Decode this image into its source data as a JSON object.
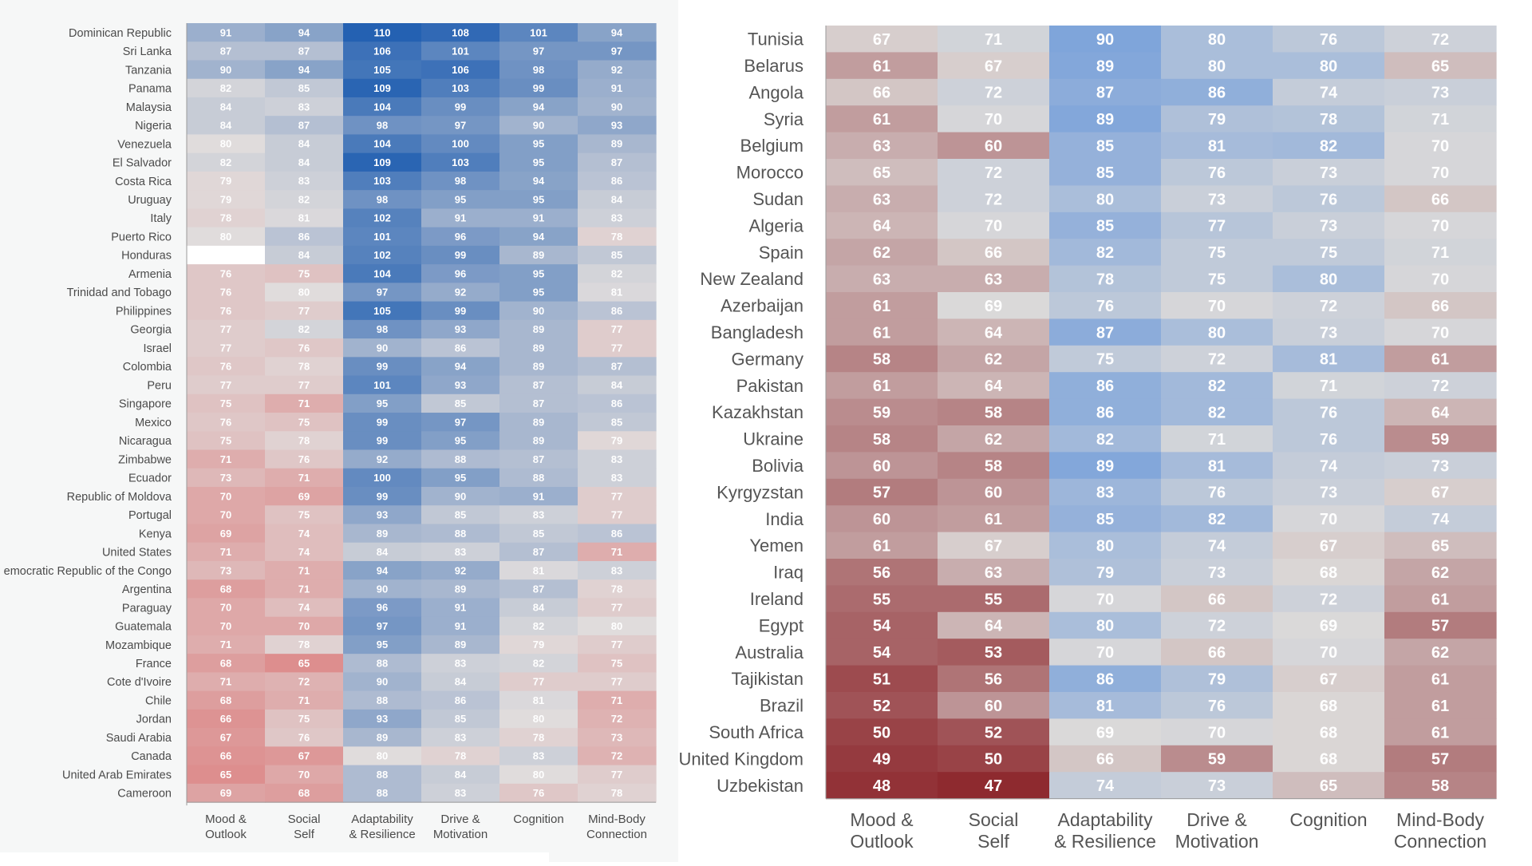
{
  "chart_data": [
    {
      "type": "heatmap",
      "columns": [
        "Mood & Outlook",
        "Social Self",
        "Adaptability & Resilience",
        "Drive & Motivation",
        "Cognition",
        "Mind-Body Connection"
      ],
      "column_labels": [
        [
          "Mood &",
          "Outlook"
        ],
        [
          "Social",
          "Self"
        ],
        [
          "Adaptability",
          "& Resilience"
        ],
        [
          "Drive &",
          "Motivation"
        ],
        [
          "Cognition"
        ],
        [
          "Mind-Body",
          "Connection"
        ]
      ],
      "color_scale": {
        "low": "#d94040",
        "mid": "#e0dcdc",
        "high": "#2461b2",
        "range": [
          50,
          110
        ]
      },
      "rows": [
        {
          "country": "Dominican Republic",
          "values": [
            91,
            94,
            110,
            108,
            101,
            94
          ]
        },
        {
          "country": "Sri Lanka",
          "values": [
            87,
            87,
            106,
            101,
            97,
            97
          ]
        },
        {
          "country": "Tanzania",
          "values": [
            90,
            94,
            105,
            106,
            98,
            92
          ]
        },
        {
          "country": "Panama",
          "values": [
            82,
            85,
            109,
            103,
            99,
            91
          ]
        },
        {
          "country": "Malaysia",
          "values": [
            84,
            83,
            104,
            99,
            94,
            90
          ]
        },
        {
          "country": "Nigeria",
          "values": [
            84,
            87,
            98,
            97,
            90,
            93
          ]
        },
        {
          "country": "Venezuela",
          "values": [
            80,
            84,
            104,
            100,
            95,
            89
          ]
        },
        {
          "country": "El Salvador",
          "values": [
            82,
            84,
            109,
            103,
            95,
            87
          ]
        },
        {
          "country": "Costa Rica",
          "values": [
            79,
            83,
            103,
            98,
            94,
            86
          ]
        },
        {
          "country": "Uruguay",
          "values": [
            79,
            82,
            98,
            95,
            95,
            84
          ]
        },
        {
          "country": "Italy",
          "values": [
            78,
            81,
            102,
            91,
            91,
            83
          ]
        },
        {
          "country": "Puerto Rico",
          "values": [
            80,
            86,
            101,
            96,
            94,
            78
          ]
        },
        {
          "country": "Honduras",
          "values": [
            null,
            84,
            102,
            99,
            89,
            85
          ]
        },
        {
          "country": "Armenia",
          "values": [
            76,
            75,
            104,
            96,
            95,
            82
          ]
        },
        {
          "country": "Trinidad and Tobago",
          "values": [
            76,
            80,
            97,
            92,
            95,
            81
          ]
        },
        {
          "country": "Philippines",
          "values": [
            76,
            77,
            105,
            99,
            90,
            86
          ]
        },
        {
          "country": "Georgia",
          "values": [
            77,
            82,
            98,
            93,
            89,
            77
          ]
        },
        {
          "country": "Israel",
          "values": [
            77,
            76,
            90,
            86,
            89,
            77
          ]
        },
        {
          "country": "Colombia",
          "values": [
            76,
            78,
            99,
            94,
            89,
            87
          ]
        },
        {
          "country": "Peru",
          "values": [
            77,
            77,
            101,
            93,
            87,
            84
          ]
        },
        {
          "country": "Singapore",
          "values": [
            75,
            71,
            95,
            85,
            87,
            86
          ]
        },
        {
          "country": "Mexico",
          "values": [
            76,
            75,
            99,
            97,
            89,
            85
          ]
        },
        {
          "country": "Nicaragua",
          "values": [
            75,
            78,
            99,
            95,
            89,
            79
          ]
        },
        {
          "country": "Zimbabwe",
          "values": [
            71,
            76,
            92,
            88,
            87,
            83
          ]
        },
        {
          "country": "Ecuador",
          "values": [
            73,
            71,
            100,
            95,
            88,
            83
          ]
        },
        {
          "country": "Republic of Moldova",
          "values": [
            70,
            69,
            99,
            90,
            91,
            77
          ]
        },
        {
          "country": "Portugal",
          "values": [
            70,
            75,
            93,
            85,
            83,
            77
          ]
        },
        {
          "country": "Kenya",
          "values": [
            69,
            74,
            89,
            88,
            85,
            86
          ]
        },
        {
          "country": "United States",
          "values": [
            71,
            74,
            84,
            83,
            87,
            71
          ]
        },
        {
          "country": "emocratic Republic of the Congo",
          "values": [
            73,
            71,
            94,
            92,
            81,
            83
          ]
        },
        {
          "country": "Argentina",
          "values": [
            68,
            71,
            90,
            89,
            87,
            78
          ]
        },
        {
          "country": "Paraguay",
          "values": [
            70,
            74,
            96,
            91,
            84,
            77
          ]
        },
        {
          "country": "Guatemala",
          "values": [
            70,
            70,
            97,
            91,
            82,
            80
          ]
        },
        {
          "country": "Mozambique",
          "values": [
            71,
            78,
            95,
            89,
            79,
            77
          ]
        },
        {
          "country": "France",
          "values": [
            68,
            65,
            88,
            83,
            82,
            75
          ]
        },
        {
          "country": "Cote d'Ivoire",
          "values": [
            71,
            72,
            90,
            84,
            77,
            77
          ]
        },
        {
          "country": "Chile",
          "values": [
            68,
            71,
            88,
            86,
            81,
            71
          ]
        },
        {
          "country": "Jordan",
          "values": [
            66,
            75,
            93,
            85,
            80,
            72
          ]
        },
        {
          "country": "Saudi Arabia",
          "values": [
            67,
            76,
            89,
            83,
            78,
            73
          ]
        },
        {
          "country": "Canada",
          "values": [
            66,
            67,
            80,
            78,
            83,
            72
          ]
        },
        {
          "country": "United Arab Emirates",
          "values": [
            65,
            70,
            88,
            84,
            80,
            77
          ]
        },
        {
          "country": "Cameroon",
          "values": [
            69,
            68,
            88,
            83,
            76,
            78
          ]
        }
      ]
    },
    {
      "type": "heatmap",
      "columns": [
        "Mood & Outlook",
        "Social Self",
        "Adaptability & Resilience",
        "Drive & Motivation",
        "Cognition",
        "Mind-Body Connection"
      ],
      "column_labels": [
        [
          "Mood &",
          "Outlook"
        ],
        [
          "Social",
          "Self"
        ],
        [
          "Adaptability",
          "& Resilience"
        ],
        [
          "Drive &",
          "Motivation"
        ],
        [
          "Cognition"
        ],
        [
          "Mind-Body",
          "Connection"
        ]
      ],
      "color_scale": {
        "low": "#8e2a2f",
        "mid": "#dcdad9",
        "high": "#7fa5da",
        "range": [
          47,
          90
        ]
      },
      "rows": [
        {
          "country": "Tunisia",
          "values": [
            67,
            71,
            90,
            80,
            76,
            72
          ]
        },
        {
          "country": "Belarus",
          "values": [
            61,
            67,
            89,
            80,
            80,
            65
          ]
        },
        {
          "country": "Angola",
          "values": [
            66,
            72,
            87,
            86,
            74,
            73
          ]
        },
        {
          "country": "Syria",
          "values": [
            61,
            70,
            89,
            79,
            78,
            71
          ]
        },
        {
          "country": "Belgium",
          "values": [
            63,
            60,
            85,
            81,
            82,
            70
          ]
        },
        {
          "country": "Morocco",
          "values": [
            65,
            72,
            85,
            76,
            73,
            70
          ]
        },
        {
          "country": "Sudan",
          "values": [
            63,
            72,
            80,
            73,
            76,
            66
          ]
        },
        {
          "country": "Algeria",
          "values": [
            64,
            70,
            85,
            77,
            73,
            70
          ]
        },
        {
          "country": "Spain",
          "values": [
            62,
            66,
            82,
            75,
            75,
            71
          ]
        },
        {
          "country": "New Zealand",
          "values": [
            63,
            63,
            78,
            75,
            80,
            70
          ]
        },
        {
          "country": "Azerbaijan",
          "values": [
            61,
            69,
            76,
            70,
            72,
            66
          ]
        },
        {
          "country": "Bangladesh",
          "values": [
            61,
            64,
            87,
            80,
            73,
            70
          ]
        },
        {
          "country": "Germany",
          "values": [
            58,
            62,
            75,
            72,
            81,
            61
          ]
        },
        {
          "country": "Pakistan",
          "values": [
            61,
            64,
            86,
            82,
            71,
            72
          ]
        },
        {
          "country": "Kazakhstan",
          "values": [
            59,
            58,
            86,
            82,
            76,
            64
          ]
        },
        {
          "country": "Ukraine",
          "values": [
            58,
            62,
            82,
            71,
            76,
            59
          ]
        },
        {
          "country": "Bolivia",
          "values": [
            60,
            58,
            89,
            81,
            74,
            73
          ]
        },
        {
          "country": "Kyrgyzstan",
          "values": [
            57,
            60,
            83,
            76,
            73,
            67
          ]
        },
        {
          "country": "India",
          "values": [
            60,
            61,
            85,
            82,
            70,
            74
          ]
        },
        {
          "country": "Yemen",
          "values": [
            61,
            67,
            80,
            74,
            67,
            65
          ]
        },
        {
          "country": "Iraq",
          "values": [
            56,
            63,
            79,
            73,
            68,
            62
          ]
        },
        {
          "country": "Ireland",
          "values": [
            55,
            55,
            70,
            66,
            72,
            61
          ]
        },
        {
          "country": "Egypt",
          "values": [
            54,
            64,
            80,
            72,
            69,
            57
          ]
        },
        {
          "country": "Australia",
          "values": [
            54,
            53,
            70,
            66,
            70,
            62
          ]
        },
        {
          "country": "Tajikistan",
          "values": [
            51,
            56,
            86,
            79,
            67,
            61
          ]
        },
        {
          "country": "Brazil",
          "values": [
            52,
            60,
            81,
            76,
            68,
            61
          ]
        },
        {
          "country": "South Africa",
          "values": [
            50,
            52,
            69,
            70,
            68,
            61
          ]
        },
        {
          "country": "United Kingdom",
          "values": [
            49,
            50,
            66,
            59,
            68,
            57
          ]
        },
        {
          "country": "Uzbekistan",
          "values": [
            48,
            47,
            74,
            73,
            65,
            58
          ]
        }
      ]
    }
  ]
}
